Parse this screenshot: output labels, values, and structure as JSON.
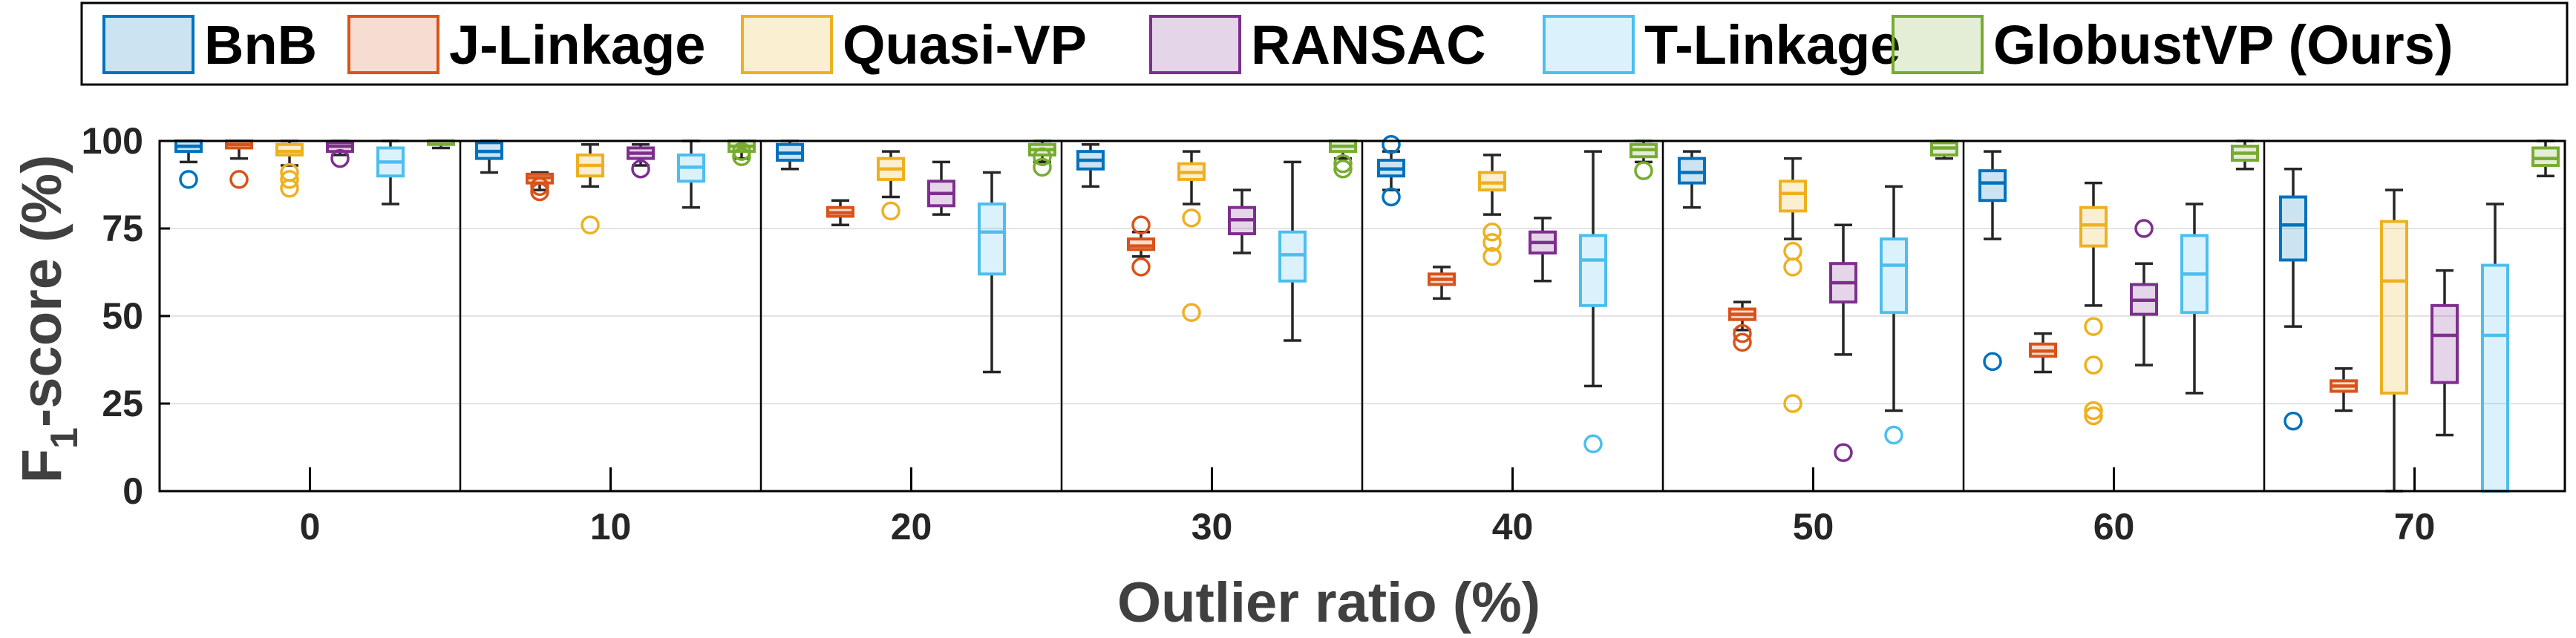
{
  "chart_data": {
    "type": "box",
    "xlabel": "Outlier ratio (%)",
    "ylabel_main": "F",
    "ylabel_sub": "1",
    "ylabel_rest": "-score (%)",
    "ylim": [
      0,
      100
    ],
    "yticks": [
      0,
      25,
      50,
      75,
      100
    ],
    "grid": "horizontal",
    "legend_position": "top",
    "groups": [
      "0",
      "10",
      "20",
      "30",
      "40",
      "50",
      "60",
      "70"
    ],
    "series": [
      {
        "name": "BnB",
        "color": "#0072BD",
        "boxes": [
          {
            "q1": 97,
            "median": 98.5,
            "q3": 100,
            "wlo": 94,
            "whi": 100,
            "outliers": [
              89
            ]
          },
          {
            "q1": 95,
            "median": 97,
            "q3": 99.5,
            "wlo": 91,
            "whi": 100,
            "outliers": []
          },
          {
            "q1": 94.5,
            "median": 96.5,
            "q3": 99,
            "wlo": 92,
            "whi": 100,
            "outliers": []
          },
          {
            "q1": 92,
            "median": 94.5,
            "q3": 97,
            "wlo": 87,
            "whi": 99,
            "outliers": []
          },
          {
            "q1": 90,
            "median": 92,
            "q3": 94.5,
            "wlo": 86,
            "whi": 97,
            "outliers": [
              84,
              99
            ]
          },
          {
            "q1": 88,
            "median": 91,
            "q3": 95,
            "wlo": 81,
            "whi": 97,
            "outliers": []
          },
          {
            "q1": 83,
            "median": 88,
            "q3": 91.5,
            "wlo": 72,
            "whi": 97,
            "outliers": [
              37
            ]
          },
          {
            "q1": 66,
            "median": 76,
            "q3": 84,
            "wlo": 47,
            "whi": 92,
            "outliers": [
              20
            ]
          }
        ]
      },
      {
        "name": "J-Linkage",
        "color": "#D95319",
        "boxes": [
          {
            "q1": 98,
            "median": 99,
            "q3": 100,
            "wlo": 95,
            "whi": 100,
            "outliers": [
              89
            ]
          },
          {
            "q1": 88,
            "median": 89.5,
            "q3": 90.5,
            "wlo": 86,
            "whi": 91,
            "outliers": [
              85.5,
              87
            ]
          },
          {
            "q1": 78.5,
            "median": 79.5,
            "q3": 81,
            "wlo": 76,
            "whi": 83,
            "outliers": []
          },
          {
            "q1": 69,
            "median": 70,
            "q3": 72,
            "wlo": 67,
            "whi": 74,
            "outliers": [
              64,
              76
            ]
          },
          {
            "q1": 59,
            "median": 60.5,
            "q3": 62,
            "wlo": 55,
            "whi": 64,
            "outliers": []
          },
          {
            "q1": 49,
            "median": 50.5,
            "q3": 52,
            "wlo": 46,
            "whi": 54,
            "outliers": [
              42.5,
              45
            ]
          },
          {
            "q1": 38.5,
            "median": 40,
            "q3": 42,
            "wlo": 34,
            "whi": 45,
            "outliers": []
          },
          {
            "q1": 28.5,
            "median": 30,
            "q3": 31.5,
            "wlo": 23,
            "whi": 35,
            "outliers": []
          }
        ]
      },
      {
        "name": "Quasi-VP",
        "color": "#EDB120",
        "boxes": [
          {
            "q1": 96,
            "median": 97,
            "q3": 99,
            "wlo": 93,
            "whi": 100,
            "outliers": [
              86.5,
              89,
              91
            ]
          },
          {
            "q1": 90,
            "median": 93,
            "q3": 96,
            "wlo": 87,
            "whi": 99,
            "outliers": [
              76
            ]
          },
          {
            "q1": 89,
            "median": 92,
            "q3": 95,
            "wlo": 84,
            "whi": 97,
            "outliers": [
              80
            ]
          },
          {
            "q1": 89,
            "median": 91,
            "q3": 93.5,
            "wlo": 82,
            "whi": 97,
            "outliers": [
              51,
              78
            ]
          },
          {
            "q1": 86,
            "median": 88,
            "q3": 91,
            "wlo": 79,
            "whi": 96,
            "outliers": [
              67,
              71,
              74
            ]
          },
          {
            "q1": 80,
            "median": 85,
            "q3": 88.5,
            "wlo": 72,
            "whi": 95,
            "outliers": [
              25,
              64,
              68.5
            ]
          },
          {
            "q1": 70,
            "median": 76,
            "q3": 81,
            "wlo": 53,
            "whi": 88,
            "outliers": [
              21.5,
              23,
              36,
              47
            ]
          },
          {
            "q1": 28,
            "median": 60,
            "q3": 77,
            "wlo": 0,
            "whi": 86,
            "outliers": []
          }
        ]
      },
      {
        "name": "RANSAC",
        "color": "#7E2F8E",
        "boxes": [
          {
            "q1": 97,
            "median": 98.5,
            "q3": 99.5,
            "wlo": 96,
            "whi": 100,
            "outliers": [
              95
            ]
          },
          {
            "q1": 95,
            "median": 96.5,
            "q3": 98,
            "wlo": 93,
            "whi": 99,
            "outliers": [
              92
            ]
          },
          {
            "q1": 81.5,
            "median": 85,
            "q3": 88.5,
            "wlo": 79,
            "whi": 94,
            "outliers": []
          },
          {
            "q1": 73.5,
            "median": 77.5,
            "q3": 81,
            "wlo": 68,
            "whi": 86,
            "outliers": []
          },
          {
            "q1": 68,
            "median": 71,
            "q3": 74,
            "wlo": 60,
            "whi": 78,
            "outliers": []
          },
          {
            "q1": 54,
            "median": 59.5,
            "q3": 65,
            "wlo": 39,
            "whi": 76,
            "outliers": [
              11
            ]
          },
          {
            "q1": 50.5,
            "median": 54.5,
            "q3": 59,
            "wlo": 36,
            "whi": 65,
            "outliers": [
              75
            ]
          },
          {
            "q1": 31,
            "median": 44.5,
            "q3": 53,
            "wlo": 16,
            "whi": 63,
            "outliers": []
          }
        ]
      },
      {
        "name": "T-Linkage",
        "color": "#4DBEEE",
        "boxes": [
          {
            "q1": 90,
            "median": 94,
            "q3": 98,
            "wlo": 82,
            "whi": 100,
            "outliers": []
          },
          {
            "q1": 88.5,
            "median": 92.5,
            "q3": 96,
            "wlo": 81,
            "whi": 100,
            "outliers": []
          },
          {
            "q1": 62,
            "median": 74,
            "q3": 82,
            "wlo": 34,
            "whi": 91,
            "outliers": []
          },
          {
            "q1": 60,
            "median": 67.5,
            "q3": 74,
            "wlo": 43,
            "whi": 94,
            "outliers": []
          },
          {
            "q1": 53,
            "median": 66,
            "q3": 73,
            "wlo": 30,
            "whi": 97,
            "outliers": [
              13.5
            ]
          },
          {
            "q1": 51,
            "median": 64.5,
            "q3": 72,
            "wlo": 23,
            "whi": 87,
            "outliers": [
              16
            ]
          },
          {
            "q1": 51,
            "median": 62,
            "q3": 73,
            "wlo": 28,
            "whi": 82,
            "outliers": []
          },
          {
            "q1": 0,
            "median": 44.5,
            "q3": 64.5,
            "wlo": 0,
            "whi": 82,
            "outliers": []
          }
        ]
      },
      {
        "name": "GlobustVP (Ours)",
        "color": "#77AC30",
        "boxes": [
          {
            "q1": 99,
            "median": 100,
            "q3": 100,
            "wlo": 98,
            "whi": 100,
            "outliers": []
          },
          {
            "q1": 97,
            "median": 98.5,
            "q3": 100,
            "wlo": 95,
            "whi": 100,
            "outliers": [
              95.5,
              97
            ]
          },
          {
            "q1": 96,
            "median": 97.5,
            "q3": 99,
            "wlo": 94,
            "whi": 100,
            "outliers": [
              92.5,
              95.5
            ]
          },
          {
            "q1": 97,
            "median": 98.5,
            "q3": 100,
            "wlo": 95,
            "whi": 100,
            "outliers": [
              92,
              93.5
            ]
          },
          {
            "q1": 95.5,
            "median": 97.5,
            "q3": 99,
            "wlo": 94,
            "whi": 100,
            "outliers": [
              91.5
            ]
          },
          {
            "q1": 96,
            "median": 98,
            "q3": 99.5,
            "wlo": 95,
            "whi": 100,
            "outliers": []
          },
          {
            "q1": 94.5,
            "median": 96.5,
            "q3": 98.5,
            "wlo": 92,
            "whi": 100,
            "outliers": []
          },
          {
            "q1": 93,
            "median": 95,
            "q3": 98,
            "wlo": 90,
            "whi": 100,
            "outliers": []
          }
        ]
      }
    ]
  }
}
